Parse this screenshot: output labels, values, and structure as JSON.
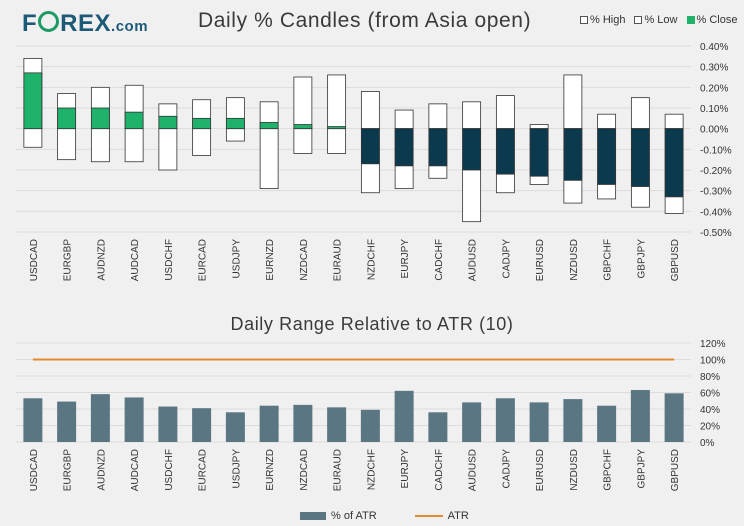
{
  "logo": {
    "pre": "F",
    "post": "REX",
    "suffix": ".com"
  },
  "colors": {
    "green": "#1fb26b",
    "navy": "#0b3a4f",
    "bar": "#5b7683",
    "atr": "#e38a2e",
    "grid": "#dcdcdc"
  },
  "chart_data": [
    {
      "type": "candlestick",
      "title": "Daily % Candles (from Asia open)",
      "legend": [
        "% High",
        "% Low",
        "% Close"
      ],
      "legend_position": "top-right",
      "yticks": [
        "0.40%",
        "0.30%",
        "0.20%",
        "0.10%",
        "0.00%",
        "-0.10%",
        "-0.20%",
        "-0.30%",
        "-0.40%",
        "-0.50%"
      ],
      "ylim": [
        -0.5,
        0.4
      ],
      "grid": true,
      "categories": [
        "USDCAD",
        "EURGBP",
        "AUDNZD",
        "AUDCAD",
        "USDCHF",
        "EURCAD",
        "USDJPY",
        "EURNZD",
        "NZDCAD",
        "EURAUD",
        "NZDCHF",
        "EURJPY",
        "CADCHF",
        "AUDUSD",
        "CADJPY",
        "EURUSD",
        "NZDUSD",
        "GBPCHF",
        "GBPJPY",
        "GBPUSD"
      ],
      "high": [
        0.34,
        0.17,
        0.2,
        0.21,
        0.12,
        0.14,
        0.15,
        0.13,
        0.25,
        0.26,
        0.18,
        0.09,
        0.12,
        0.13,
        0.16,
        0.02,
        0.26,
        0.07,
        0.15,
        0.07
      ],
      "low": [
        -0.09,
        -0.15,
        -0.16,
        -0.16,
        -0.2,
        -0.13,
        -0.06,
        -0.29,
        -0.12,
        -0.12,
        -0.31,
        -0.29,
        -0.24,
        -0.45,
        -0.31,
        -0.27,
        -0.36,
        -0.34,
        -0.38,
        -0.41
      ],
      "close": [
        0.27,
        0.1,
        0.1,
        0.08,
        0.06,
        0.05,
        0.05,
        0.03,
        0.02,
        0.01,
        -0.17,
        -0.18,
        -0.18,
        -0.2,
        -0.22,
        -0.23,
        -0.25,
        -0.27,
        -0.28,
        -0.33
      ]
    },
    {
      "type": "bar",
      "title": "Daily Range Relative to ATR (10)",
      "legend": [
        "% of ATR",
        "ATR"
      ],
      "legend_position": "bottom",
      "yticks": [
        "120%",
        "100%",
        "80%",
        "60%",
        "40%",
        "20%",
        "0%"
      ],
      "ylim": [
        0,
        120
      ],
      "grid": true,
      "categories": [
        "USDCAD",
        "EURGBP",
        "AUDNZD",
        "AUDCAD",
        "USDCHF",
        "EURCAD",
        "USDJPY",
        "EURNZD",
        "NZDCAD",
        "EURAUD",
        "NZDCHF",
        "EURJPY",
        "CADCHF",
        "AUDUSD",
        "CADJPY",
        "EURUSD",
        "NZDUSD",
        "GBPCHF",
        "GBPJPY",
        "GBPUSD"
      ],
      "values": [
        53,
        49,
        58,
        54,
        43,
        41,
        36,
        44,
        45,
        42,
        39,
        62,
        36,
        48,
        53,
        48,
        52,
        44,
        63,
        59
      ],
      "atr": 100
    }
  ]
}
